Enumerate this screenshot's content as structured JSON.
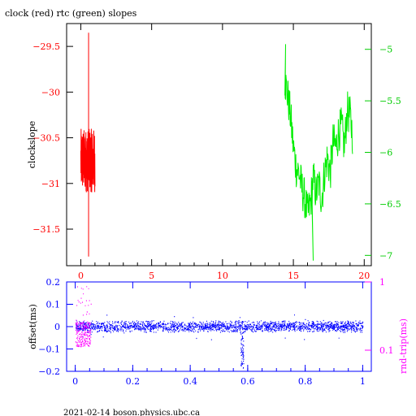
{
  "chart_data": [
    {
      "type": "line",
      "title": "clock (red) rtc (green) slopes",
      "ylabel": "clockslope",
      "xlabel": "",
      "xlim": [
        -1,
        20.5
      ],
      "x_ticks": [
        "0",
        "5",
        "10",
        "15",
        "20"
      ],
      "ylim_left": [
        -31.9,
        -29.25
      ],
      "y_ticks_left": [
        "-29.5",
        "-30",
        "-30.5",
        "-31",
        "-31.5"
      ],
      "ylim_right": [
        -7.1,
        -4.75
      ],
      "y_ticks_right": [
        "-5",
        "-5.5",
        "-6",
        "-6.5",
        "-7"
      ],
      "grid": false,
      "series": [
        {
          "color": "#ff0000",
          "axis": "left",
          "x_range": [
            0.0,
            1.0
          ],
          "band": [
            -31.1,
            -30.4
          ],
          "spike_x": 0.55,
          "spike_range": [
            -31.8,
            -29.35
          ]
        },
        {
          "color": "#00ee00",
          "axis": "right",
          "x": [
            14.4,
            14.6,
            14.8,
            15.0,
            15.2,
            15.4,
            15.6,
            15.8,
            16.0,
            16.2,
            16.4,
            16.6,
            16.8,
            17.0,
            17.2,
            17.4,
            17.6,
            17.8,
            18.0,
            18.2,
            18.4,
            18.6,
            18.8,
            19.0,
            19.2
          ],
          "y": [
            -5.3,
            -5.45,
            -5.65,
            -5.95,
            -6.15,
            -6.2,
            -6.35,
            -6.45,
            -6.6,
            -6.5,
            -6.25,
            -6.4,
            -6.3,
            -6.45,
            -6.2,
            -6.05,
            -6.2,
            -5.9,
            -5.95,
            -5.8,
            -5.75,
            -5.95,
            -5.6,
            -5.65,
            -5.85
          ],
          "noise": 0.2,
          "extremes": {
            "max": -4.95,
            "min": -7.05
          }
        }
      ]
    },
    {
      "type": "scatter",
      "ylabel": "offset(ms)",
      "ylabel_right": "rnd-trip(ms)",
      "xlim": [
        -0.03,
        1.03
      ],
      "x_ticks": [
        "0",
        "0.2",
        "0.4",
        "0.6",
        "0.8",
        "1"
      ],
      "ylim": [
        -0.2,
        0.2
      ],
      "y_ticks": [
        "0.2",
        "0.1",
        "0",
        "-0.1",
        "-0.2"
      ],
      "y_ticks_right": [
        "1",
        "0.1"
      ],
      "right_scale": "log",
      "grid": false,
      "series": [
        {
          "color": "#0000ff",
          "x_range": [
            0.0,
            1.0
          ],
          "band": [
            -0.02,
            0.02
          ],
          "dip_x": [
            0.575,
            0.585
          ],
          "dip_min": -0.19
        },
        {
          "color": "#ff00ff",
          "x_range": [
            0.0,
            0.055
          ],
          "band": [
            -0.09,
            0.02
          ],
          "outliers_to": 0.18
        }
      ]
    }
  ],
  "footer": "2021-02-14 boson.physics.ubc.ca"
}
